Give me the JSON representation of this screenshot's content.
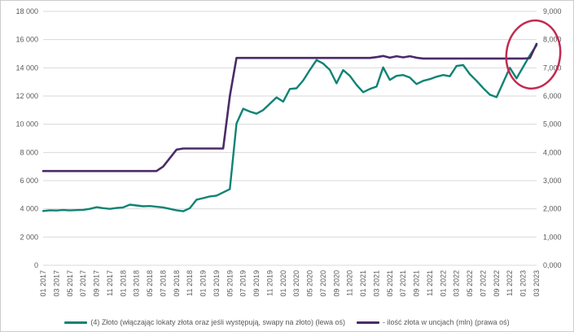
{
  "chart_data": {
    "type": "line",
    "x_tick_labels": [
      "01 2017",
      "03 2017",
      "05 2017",
      "07 2017",
      "09 2017",
      "11 2017",
      "01 2018",
      "03 2018",
      "05 2018",
      "07 2018",
      "09 2018",
      "11 2018",
      "01 2019",
      "03 2019",
      "05 2019",
      "07 2019",
      "09 2019",
      "11 2019",
      "01 2020",
      "03 2020",
      "05 2020",
      "07 2020",
      "09 2020",
      "11 2020",
      "01 2021",
      "03 2021",
      "05 2021",
      "07 2021",
      "09 2021",
      "11 2021",
      "01 2022",
      "03 2022",
      "05 2022",
      "07 2022",
      "09 2022",
      "11 2022",
      "01 2023",
      "03 2023"
    ],
    "x_tick_step_months": 2,
    "left_axis": {
      "min": 0,
      "max": 18000,
      "step": 2000,
      "labels": [
        "18 000",
        "16 000",
        "14 000",
        "12 000",
        "10 000",
        "8 000",
        "6 000",
        "4 000",
        "2 000",
        "0"
      ]
    },
    "right_axis": {
      "min": 0,
      "max": 9,
      "step": 1,
      "labels": [
        "9,000",
        "8,000",
        "7,000",
        "6,000",
        "5,000",
        "4,000",
        "3,000",
        "2,000",
        "1,000",
        "0,000"
      ]
    },
    "grid": "horizontal",
    "legend_position": "bottom",
    "series": [
      {
        "name": "(4) Złoto (włączając lokaty złota oraz jeśli występują, swapy na złoto) (lewa oś)",
        "axis": "left",
        "color": "#0f8374",
        "values": [
          3850,
          3900,
          3880,
          3920,
          3890,
          3910,
          3930,
          4000,
          4120,
          4050,
          4000,
          4060,
          4100,
          4300,
          4240,
          4180,
          4200,
          4150,
          4100,
          4000,
          3900,
          3830,
          4050,
          4650,
          4760,
          4880,
          4940,
          5170,
          5400,
          10050,
          11100,
          10900,
          10750,
          11000,
          11450,
          11900,
          11600,
          12500,
          12550,
          13100,
          13850,
          14550,
          14300,
          13850,
          12900,
          13840,
          13430,
          12790,
          12270,
          12500,
          12670,
          14030,
          13140,
          13430,
          13490,
          13310,
          12850,
          13080,
          13200,
          13370,
          13490,
          13400,
          14130,
          14190,
          13550,
          13080,
          12560,
          12090,
          11920,
          12970,
          14000,
          13250,
          14070,
          14890,
          15600
        ]
      },
      {
        "name": "- ilość złota w uncjach (mln) (prawa oś)",
        "axis": "right",
        "color": "#4a2a68",
        "values": [
          3.34,
          3.34,
          3.34,
          3.34,
          3.34,
          3.34,
          3.34,
          3.34,
          3.34,
          3.34,
          3.34,
          3.34,
          3.34,
          3.34,
          3.34,
          3.34,
          3.34,
          3.34,
          3.5,
          3.8,
          4.1,
          4.14,
          4.14,
          4.14,
          4.14,
          4.14,
          4.14,
          4.14,
          6.0,
          7.35,
          7.35,
          7.35,
          7.35,
          7.35,
          7.35,
          7.35,
          7.35,
          7.35,
          7.35,
          7.35,
          7.35,
          7.35,
          7.35,
          7.35,
          7.35,
          7.35,
          7.35,
          7.35,
          7.35,
          7.35,
          7.38,
          7.42,
          7.36,
          7.41,
          7.37,
          7.41,
          7.36,
          7.33,
          7.33,
          7.33,
          7.33,
          7.33,
          7.33,
          7.33,
          7.33,
          7.33,
          7.33,
          7.33,
          7.33,
          7.33,
          7.33,
          7.33,
          7.33,
          7.34,
          7.85
        ]
      }
    ],
    "annotation": {
      "shape": "ellipse",
      "color": "#c22a52"
    },
    "colors": {
      "gridline": "#d9d9d9",
      "axis_text": "#595959",
      "background": "#ffffff"
    }
  }
}
